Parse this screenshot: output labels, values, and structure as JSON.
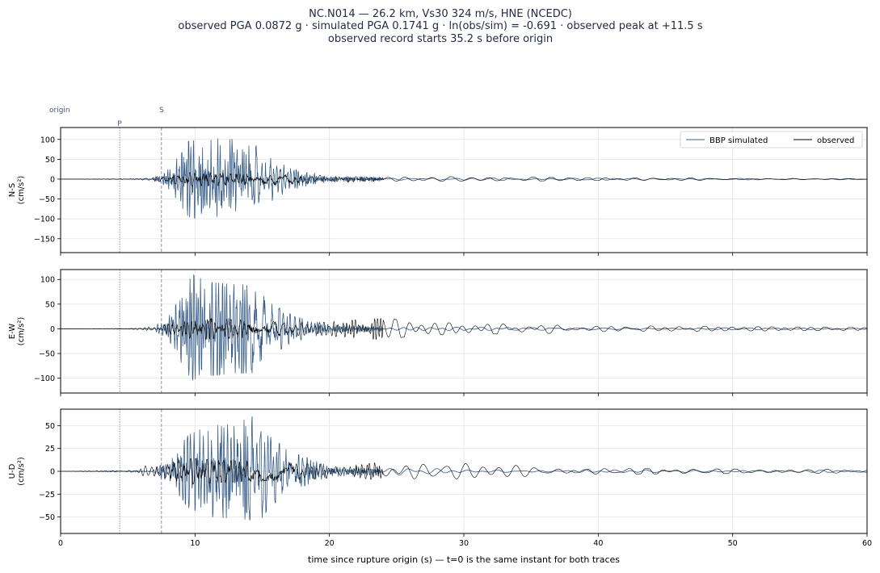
{
  "figure": {
    "title_lines": [
      "NC.N014  —  26.2 km, Vs30 324 m/s, HNE (NCEDC)",
      "observed PGA 0.0872 g   ·   simulated PGA 0.1741 g   ·   ln(obs/sim) = -0.691   ·   observed peak at +11.5 s",
      "observed record starts 35.2 s before origin"
    ],
    "xlabel": "time since rupture origin (s)   —   t=0 is the same instant for both traces"
  },
  "markers": {
    "origin_label": "origin",
    "p_label": "P",
    "s_label": "S",
    "p_time": 4.4,
    "s_time": 7.5
  },
  "legend": {
    "placement": "top-right",
    "simulated_label": "BBP simulated",
    "observed_label": "observed"
  },
  "colors": {
    "simulated": "#3a5f8a",
    "observed": "#000000",
    "p_line": "#888888",
    "s_line": "#8a8fc8",
    "grid": "#e3e3e3"
  },
  "chart_data": [
    {
      "type": "line",
      "component": "N-S",
      "ylabel_lines": [
        "N-S",
        "(cm/s²)"
      ],
      "xlim": [
        0,
        60
      ],
      "ylim": [
        -185,
        130
      ],
      "yticks": [
        100,
        50,
        0,
        -50,
        -100,
        -150
      ],
      "xticks": [
        0,
        10,
        20,
        30,
        40,
        50,
        60
      ],
      "grid": true,
      "series": [
        {
          "name": "BBP simulated",
          "envelope": [
            [
              0,
              0
            ],
            [
              6.8,
              1
            ],
            [
              8.2,
              30
            ],
            [
              9.5,
              95
            ],
            [
              11,
              105
            ],
            [
              12.5,
              100
            ],
            [
              14.5,
              110
            ],
            [
              15.5,
              60
            ],
            [
              17,
              28
            ],
            [
              20,
              8
            ],
            [
              30,
              3
            ],
            [
              60,
              1.5
            ]
          ]
        },
        {
          "name": "observed",
          "envelope": [
            [
              0,
              0
            ],
            [
              5.6,
              1
            ],
            [
              6.5,
              4
            ],
            [
              8.5,
              12
            ],
            [
              10,
              18
            ],
            [
              12,
              16
            ],
            [
              16,
              14
            ],
            [
              18,
              11
            ],
            [
              21,
              8
            ],
            [
              24,
              5
            ],
            [
              28,
              6
            ],
            [
              29.5,
              8
            ],
            [
              31,
              6
            ],
            [
              37,
              4
            ],
            [
              45,
              3
            ],
            [
              60,
              2
            ]
          ]
        }
      ]
    },
    {
      "type": "line",
      "component": "E-W",
      "ylabel_lines": [
        "E-W",
        "(cm/s²)"
      ],
      "xlim": [
        0,
        60
      ],
      "ylim": [
        -130,
        120
      ],
      "yticks": [
        100,
        50,
        0,
        -50,
        -100
      ],
      "xticks": [
        0,
        10,
        20,
        30,
        40,
        50,
        60
      ],
      "grid": true,
      "series": [
        {
          "name": "BBP simulated",
          "envelope": [
            [
              0,
              0
            ],
            [
              6.8,
              1
            ],
            [
              8.2,
              30
            ],
            [
              9.8,
              110
            ],
            [
              11,
              95
            ],
            [
              13,
              90
            ],
            [
              14.3,
              90
            ],
            [
              15.5,
              55
            ],
            [
              17.5,
              25
            ],
            [
              20,
              8
            ],
            [
              30,
              3
            ],
            [
              60,
              1.5
            ]
          ]
        },
        {
          "name": "observed",
          "envelope": [
            [
              0,
              0
            ],
            [
              5.6,
              1
            ],
            [
              6.5,
              4
            ],
            [
              8.5,
              12
            ],
            [
              10,
              22
            ],
            [
              12,
              20
            ],
            [
              16,
              15
            ],
            [
              19,
              12
            ],
            [
              21.5,
              18
            ],
            [
              24,
              22
            ],
            [
              27,
              12
            ],
            [
              30,
              12
            ],
            [
              33,
              10
            ],
            [
              37,
              9
            ],
            [
              40,
              8
            ],
            [
              45,
              5
            ],
            [
              60,
              3
            ]
          ]
        }
      ]
    },
    {
      "type": "line",
      "component": "U-D",
      "ylabel_lines": [
        "U-D",
        "(cm/s²)"
      ],
      "xlim": [
        0,
        60
      ],
      "ylim": [
        -68,
        68
      ],
      "yticks": [
        50,
        25,
        0,
        -25,
        -50
      ],
      "xticks": [
        0,
        10,
        20,
        30,
        40,
        50,
        60
      ],
      "grid": true,
      "series": [
        {
          "name": "BBP simulated",
          "envelope": [
            [
              0,
              0
            ],
            [
              6.8,
              1
            ],
            [
              8.2,
              15
            ],
            [
              9.5,
              40
            ],
            [
              11,
              50
            ],
            [
              13,
              52
            ],
            [
              14.5,
              62
            ],
            [
              15.5,
              40
            ],
            [
              17,
              22
            ],
            [
              20,
              6
            ],
            [
              30,
              2
            ],
            [
              60,
              1
            ]
          ]
        },
        {
          "name": "observed",
          "envelope": [
            [
              0,
              0
            ],
            [
              5.6,
              1
            ],
            [
              6,
              6
            ],
            [
              7.5,
              10
            ],
            [
              9.5,
              14
            ],
            [
              12,
              12
            ],
            [
              16,
              10
            ],
            [
              19,
              8
            ],
            [
              22,
              7
            ],
            [
              24.5,
              11
            ],
            [
              27,
              9
            ],
            [
              29.5,
              10
            ],
            [
              33,
              8
            ],
            [
              37,
              5
            ],
            [
              40,
              3
            ],
            [
              60,
              2
            ]
          ]
        }
      ]
    }
  ]
}
